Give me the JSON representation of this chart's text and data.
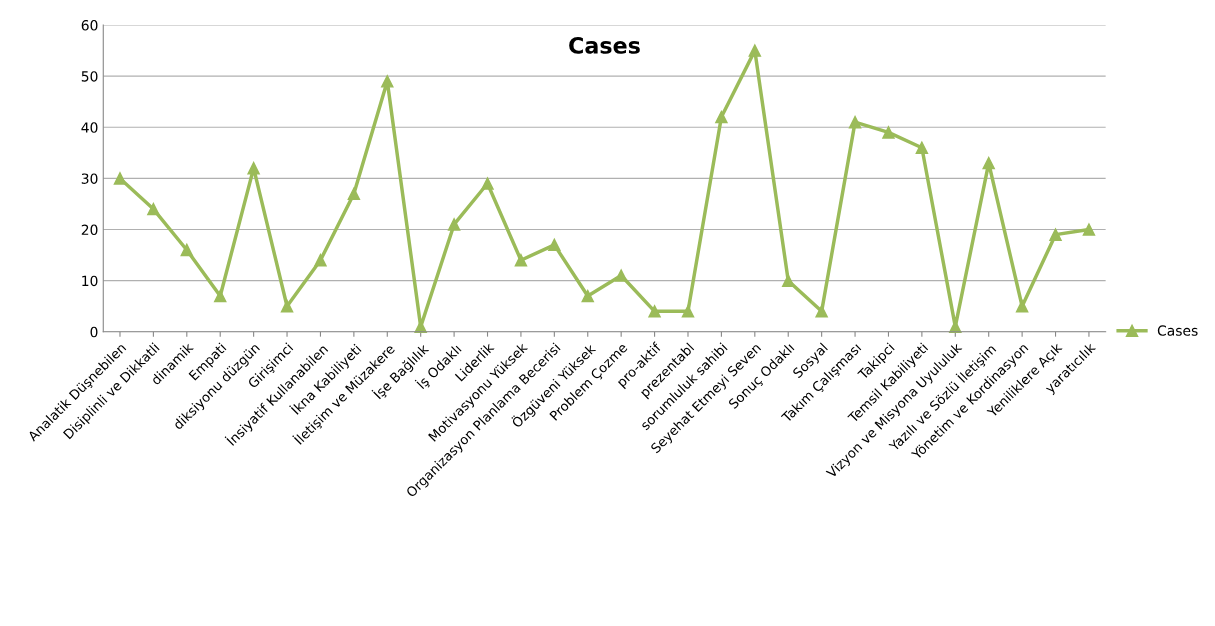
{
  "chart_data": {
    "type": "line",
    "title": "Cases",
    "categories": [
      "Analatik Düşnebilen",
      "Disiplinli ve Dikkatli",
      "dinamik",
      "Empati",
      "diksiyonu düzgün",
      "Girişimci",
      "İnsiyatif Kullanabilen",
      "İkna Kabiliyeti",
      "İletişim ve Müzakere",
      "İşe Bağlılık",
      "İş Odaklı",
      "Liderlik",
      "Motivasyonu Yüksek",
      "Organizasyon Planlama Becerisi",
      "Özgüveni Yüksek",
      "Problem Çozme",
      "pro-aktif",
      "prezentabl",
      "sorumluluk sahibi",
      "Seyehat Etmeyi Seven",
      "Sonuç Odaklı",
      "Sosyal",
      "Takım Çalışması",
      "Takipci",
      "Temsil Kabiliyeti",
      "Vizyon ve Misyona Uyululuk",
      "Yazılı ve Sözlü İletişim",
      "Yönetim ve Kordinasyon",
      "Yeniliklere Açık",
      "yaratıcılık"
    ],
    "series": [
      {
        "name": "Cases",
        "color": "#9bbb59",
        "values": [
          30,
          24,
          16,
          7,
          32,
          5,
          14,
          27,
          49,
          1,
          21,
          29,
          14,
          17,
          7,
          11,
          4,
          4,
          42,
          55,
          10,
          4,
          41,
          39,
          36,
          1,
          33,
          5,
          19,
          20
        ]
      }
    ],
    "ylim": [
      0,
      60
    ],
    "yticks": [
      0,
      10,
      20,
      30,
      40,
      50,
      60
    ],
    "grid": "y",
    "legend": "right",
    "marker": "triangle"
  }
}
